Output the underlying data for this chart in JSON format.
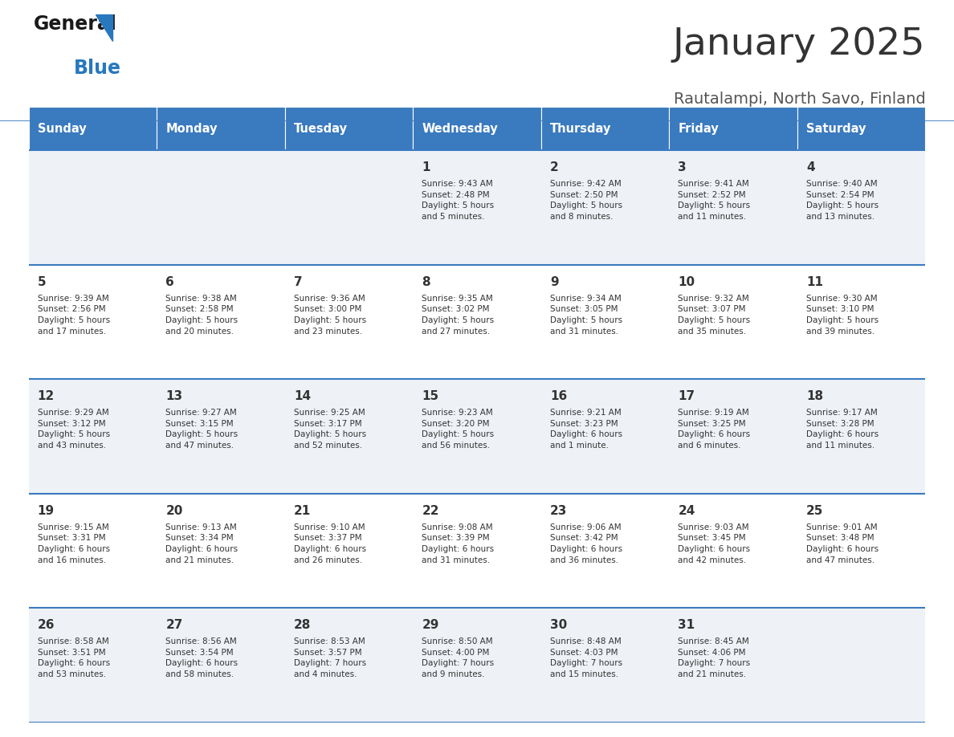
{
  "title": "January 2025",
  "subtitle": "Rautalampi, North Savo, Finland",
  "header_color": "#3a7abf",
  "header_text_color": "#ffffff",
  "cell_bg_even": "#eef2f7",
  "cell_bg_odd": "#ffffff",
  "border_color": "#3a7abf",
  "day_headers": [
    "Sunday",
    "Monday",
    "Tuesday",
    "Wednesday",
    "Thursday",
    "Friday",
    "Saturday"
  ],
  "title_color": "#333333",
  "subtitle_color": "#555555",
  "days": [
    {
      "day": 1,
      "col": 3,
      "row": 0,
      "sunrise": "9:43 AM",
      "sunset": "2:48 PM",
      "daylight": "5 hours\nand 5 minutes."
    },
    {
      "day": 2,
      "col": 4,
      "row": 0,
      "sunrise": "9:42 AM",
      "sunset": "2:50 PM",
      "daylight": "5 hours\nand 8 minutes."
    },
    {
      "day": 3,
      "col": 5,
      "row": 0,
      "sunrise": "9:41 AM",
      "sunset": "2:52 PM",
      "daylight": "5 hours\nand 11 minutes."
    },
    {
      "day": 4,
      "col": 6,
      "row": 0,
      "sunrise": "9:40 AM",
      "sunset": "2:54 PM",
      "daylight": "5 hours\nand 13 minutes."
    },
    {
      "day": 5,
      "col": 0,
      "row": 1,
      "sunrise": "9:39 AM",
      "sunset": "2:56 PM",
      "daylight": "5 hours\nand 17 minutes."
    },
    {
      "day": 6,
      "col": 1,
      "row": 1,
      "sunrise": "9:38 AM",
      "sunset": "2:58 PM",
      "daylight": "5 hours\nand 20 minutes."
    },
    {
      "day": 7,
      "col": 2,
      "row": 1,
      "sunrise": "9:36 AM",
      "sunset": "3:00 PM",
      "daylight": "5 hours\nand 23 minutes."
    },
    {
      "day": 8,
      "col": 3,
      "row": 1,
      "sunrise": "9:35 AM",
      "sunset": "3:02 PM",
      "daylight": "5 hours\nand 27 minutes."
    },
    {
      "day": 9,
      "col": 4,
      "row": 1,
      "sunrise": "9:34 AM",
      "sunset": "3:05 PM",
      "daylight": "5 hours\nand 31 minutes."
    },
    {
      "day": 10,
      "col": 5,
      "row": 1,
      "sunrise": "9:32 AM",
      "sunset": "3:07 PM",
      "daylight": "5 hours\nand 35 minutes."
    },
    {
      "day": 11,
      "col": 6,
      "row": 1,
      "sunrise": "9:30 AM",
      "sunset": "3:10 PM",
      "daylight": "5 hours\nand 39 minutes."
    },
    {
      "day": 12,
      "col": 0,
      "row": 2,
      "sunrise": "9:29 AM",
      "sunset": "3:12 PM",
      "daylight": "5 hours\nand 43 minutes."
    },
    {
      "day": 13,
      "col": 1,
      "row": 2,
      "sunrise": "9:27 AM",
      "sunset": "3:15 PM",
      "daylight": "5 hours\nand 47 minutes."
    },
    {
      "day": 14,
      "col": 2,
      "row": 2,
      "sunrise": "9:25 AM",
      "sunset": "3:17 PM",
      "daylight": "5 hours\nand 52 minutes."
    },
    {
      "day": 15,
      "col": 3,
      "row": 2,
      "sunrise": "9:23 AM",
      "sunset": "3:20 PM",
      "daylight": "5 hours\nand 56 minutes."
    },
    {
      "day": 16,
      "col": 4,
      "row": 2,
      "sunrise": "9:21 AM",
      "sunset": "3:23 PM",
      "daylight": "6 hours\nand 1 minute."
    },
    {
      "day": 17,
      "col": 5,
      "row": 2,
      "sunrise": "9:19 AM",
      "sunset": "3:25 PM",
      "daylight": "6 hours\nand 6 minutes."
    },
    {
      "day": 18,
      "col": 6,
      "row": 2,
      "sunrise": "9:17 AM",
      "sunset": "3:28 PM",
      "daylight": "6 hours\nand 11 minutes."
    },
    {
      "day": 19,
      "col": 0,
      "row": 3,
      "sunrise": "9:15 AM",
      "sunset": "3:31 PM",
      "daylight": "6 hours\nand 16 minutes."
    },
    {
      "day": 20,
      "col": 1,
      "row": 3,
      "sunrise": "9:13 AM",
      "sunset": "3:34 PM",
      "daylight": "6 hours\nand 21 minutes."
    },
    {
      "day": 21,
      "col": 2,
      "row": 3,
      "sunrise": "9:10 AM",
      "sunset": "3:37 PM",
      "daylight": "6 hours\nand 26 minutes."
    },
    {
      "day": 22,
      "col": 3,
      "row": 3,
      "sunrise": "9:08 AM",
      "sunset": "3:39 PM",
      "daylight": "6 hours\nand 31 minutes."
    },
    {
      "day": 23,
      "col": 4,
      "row": 3,
      "sunrise": "9:06 AM",
      "sunset": "3:42 PM",
      "daylight": "6 hours\nand 36 minutes."
    },
    {
      "day": 24,
      "col": 5,
      "row": 3,
      "sunrise": "9:03 AM",
      "sunset": "3:45 PM",
      "daylight": "6 hours\nand 42 minutes."
    },
    {
      "day": 25,
      "col": 6,
      "row": 3,
      "sunrise": "9:01 AM",
      "sunset": "3:48 PM",
      "daylight": "6 hours\nand 47 minutes."
    },
    {
      "day": 26,
      "col": 0,
      "row": 4,
      "sunrise": "8:58 AM",
      "sunset": "3:51 PM",
      "daylight": "6 hours\nand 53 minutes."
    },
    {
      "day": 27,
      "col": 1,
      "row": 4,
      "sunrise": "8:56 AM",
      "sunset": "3:54 PM",
      "daylight": "6 hours\nand 58 minutes."
    },
    {
      "day": 28,
      "col": 2,
      "row": 4,
      "sunrise": "8:53 AM",
      "sunset": "3:57 PM",
      "daylight": "7 hours\nand 4 minutes."
    },
    {
      "day": 29,
      "col": 3,
      "row": 4,
      "sunrise": "8:50 AM",
      "sunset": "4:00 PM",
      "daylight": "7 hours\nand 9 minutes."
    },
    {
      "day": 30,
      "col": 4,
      "row": 4,
      "sunrise": "8:48 AM",
      "sunset": "4:03 PM",
      "daylight": "7 hours\nand 15 minutes."
    },
    {
      "day": 31,
      "col": 5,
      "row": 4,
      "sunrise": "8:45 AM",
      "sunset": "4:06 PM",
      "daylight": "7 hours\nand 21 minutes."
    }
  ]
}
